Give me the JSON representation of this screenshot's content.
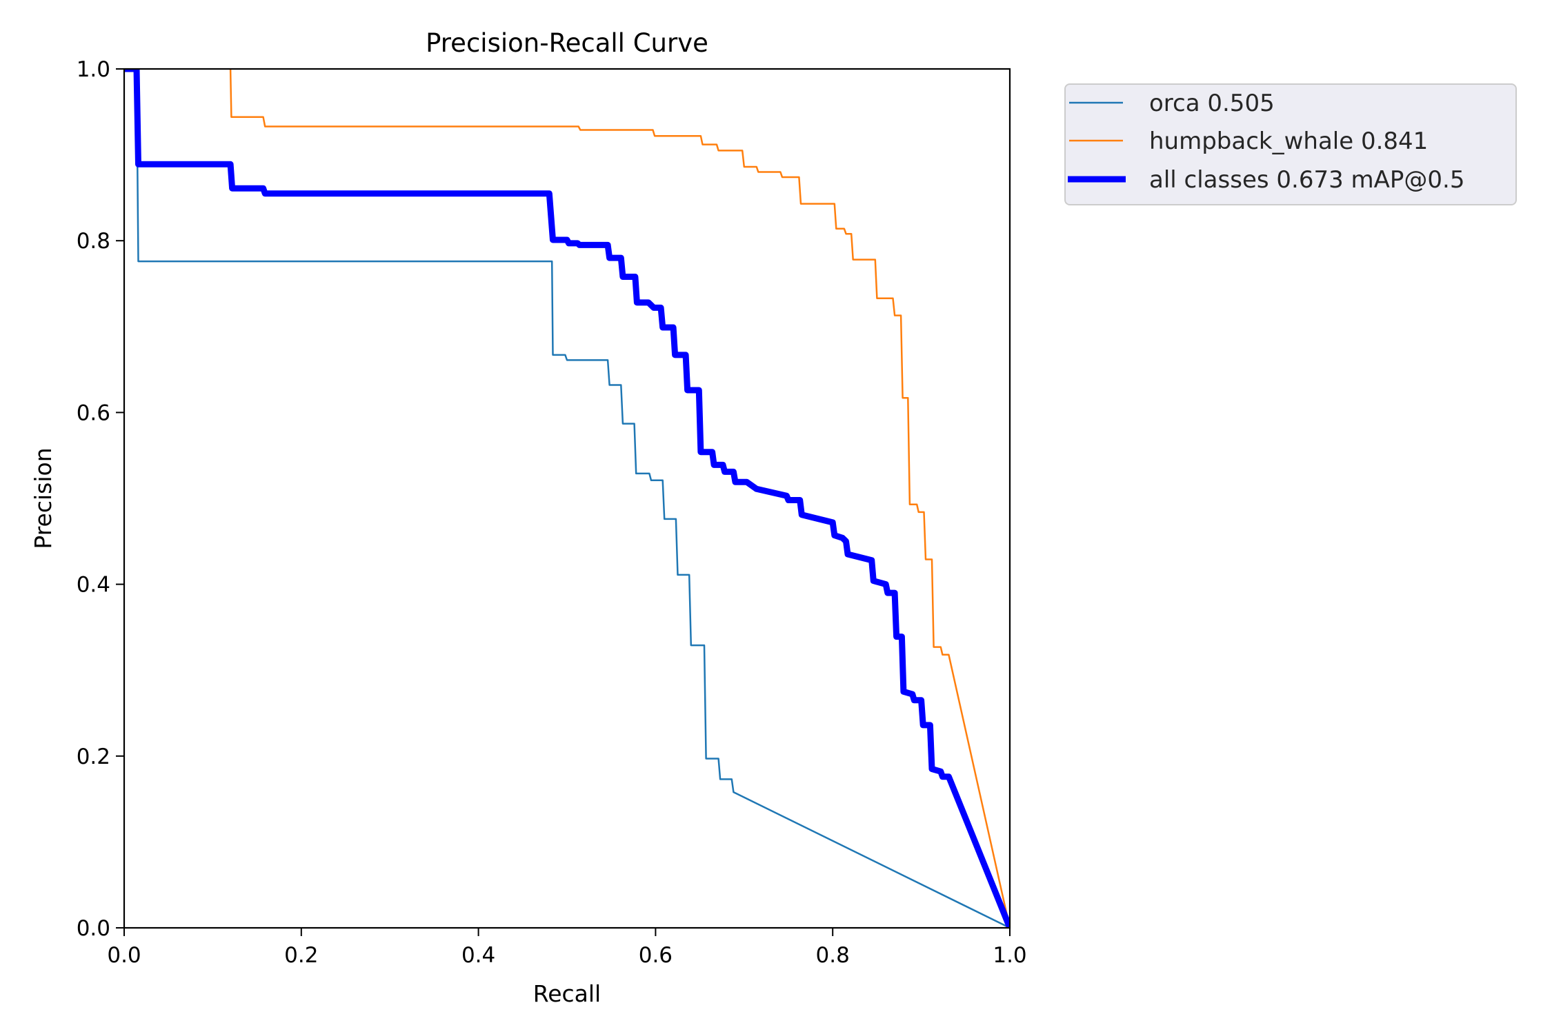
{
  "chart_data": {
    "type": "line",
    "title": "Precision-Recall Curve",
    "xlabel": "Recall",
    "ylabel": "Precision",
    "xlim": [
      0,
      1
    ],
    "ylim": [
      0,
      1
    ],
    "xticks": [
      "0.0",
      "0.2",
      "0.4",
      "0.6",
      "0.8",
      "1.0"
    ],
    "yticks": [
      "0.0",
      "0.2",
      "0.4",
      "0.6",
      "0.8",
      "1.0"
    ],
    "grid": false,
    "legend_position": "outside-top-right",
    "series": [
      {
        "name": "orca 0.505",
        "color": "#1f77b4",
        "width": "thin",
        "points": [
          [
            0,
            1.0
          ],
          [
            0.014,
            1.0
          ],
          [
            0.016,
            0.776
          ],
          [
            0.483,
            0.776
          ],
          [
            0.484,
            0.667
          ],
          [
            0.498,
            0.667
          ],
          [
            0.5,
            0.661
          ],
          [
            0.546,
            0.661
          ],
          [
            0.548,
            0.632
          ],
          [
            0.561,
            0.632
          ],
          [
            0.563,
            0.587
          ],
          [
            0.576,
            0.587
          ],
          [
            0.578,
            0.529
          ],
          [
            0.593,
            0.529
          ],
          [
            0.595,
            0.521
          ],
          [
            0.608,
            0.521
          ],
          [
            0.61,
            0.476
          ],
          [
            0.623,
            0.476
          ],
          [
            0.625,
            0.411
          ],
          [
            0.638,
            0.411
          ],
          [
            0.64,
            0.329
          ],
          [
            0.655,
            0.329
          ],
          [
            0.657,
            0.197
          ],
          [
            0.671,
            0.197
          ],
          [
            0.673,
            0.173
          ],
          [
            0.686,
            0.173
          ],
          [
            0.688,
            0.158
          ],
          [
            1.0,
            0.0
          ]
        ]
      },
      {
        "name": "humpback_whale 0.841",
        "color": "#ff7f0e",
        "width": "thin",
        "points": [
          [
            0.12,
            1.0
          ],
          [
            0.121,
            0.944
          ],
          [
            0.157,
            0.944
          ],
          [
            0.159,
            0.933
          ],
          [
            0.513,
            0.933
          ],
          [
            0.515,
            0.929
          ],
          [
            0.597,
            0.929
          ],
          [
            0.599,
            0.922
          ],
          [
            0.651,
            0.922
          ],
          [
            0.653,
            0.912
          ],
          [
            0.669,
            0.912
          ],
          [
            0.671,
            0.905
          ],
          [
            0.698,
            0.905
          ],
          [
            0.7,
            0.886
          ],
          [
            0.714,
            0.886
          ],
          [
            0.716,
            0.88
          ],
          [
            0.741,
            0.88
          ],
          [
            0.743,
            0.874
          ],
          [
            0.762,
            0.874
          ],
          [
            0.764,
            0.843
          ],
          [
            0.802,
            0.843
          ],
          [
            0.804,
            0.814
          ],
          [
            0.813,
            0.814
          ],
          [
            0.815,
            0.808
          ],
          [
            0.821,
            0.808
          ],
          [
            0.823,
            0.778
          ],
          [
            0.848,
            0.778
          ],
          [
            0.85,
            0.733
          ],
          [
            0.868,
            0.733
          ],
          [
            0.87,
            0.713
          ],
          [
            0.877,
            0.713
          ],
          [
            0.879,
            0.617
          ],
          [
            0.885,
            0.617
          ],
          [
            0.887,
            0.493
          ],
          [
            0.895,
            0.493
          ],
          [
            0.897,
            0.484
          ],
          [
            0.903,
            0.484
          ],
          [
            0.905,
            0.429
          ],
          [
            0.912,
            0.429
          ],
          [
            0.914,
            0.327
          ],
          [
            0.922,
            0.327
          ],
          [
            0.924,
            0.318
          ],
          [
            0.931,
            0.318
          ],
          [
            1.0,
            0.0
          ]
        ]
      },
      {
        "name": "all classes 0.673 mAP@0.5",
        "color": "#0000ff",
        "width": "thick",
        "points": [
          [
            0,
            1.0
          ],
          [
            0.014,
            1.0
          ],
          [
            0.016,
            0.889
          ],
          [
            0.12,
            0.889
          ],
          [
            0.122,
            0.861
          ],
          [
            0.157,
            0.861
          ],
          [
            0.159,
            0.855
          ],
          [
            0.48,
            0.855
          ],
          [
            0.484,
            0.801
          ],
          [
            0.5,
            0.801
          ],
          [
            0.502,
            0.797
          ],
          [
            0.512,
            0.797
          ],
          [
            0.514,
            0.795
          ],
          [
            0.546,
            0.795
          ],
          [
            0.548,
            0.78
          ],
          [
            0.561,
            0.78
          ],
          [
            0.563,
            0.758
          ],
          [
            0.577,
            0.758
          ],
          [
            0.579,
            0.728
          ],
          [
            0.592,
            0.728
          ],
          [
            0.598,
            0.722
          ],
          [
            0.606,
            0.722
          ],
          [
            0.608,
            0.699
          ],
          [
            0.62,
            0.699
          ],
          [
            0.622,
            0.667
          ],
          [
            0.634,
            0.667
          ],
          [
            0.636,
            0.626
          ],
          [
            0.649,
            0.626
          ],
          [
            0.651,
            0.554
          ],
          [
            0.664,
            0.554
          ],
          [
            0.666,
            0.539
          ],
          [
            0.676,
            0.539
          ],
          [
            0.678,
            0.531
          ],
          [
            0.688,
            0.531
          ],
          [
            0.69,
            0.519
          ],
          [
            0.703,
            0.519
          ],
          [
            0.714,
            0.511
          ],
          [
            0.748,
            0.503
          ],
          [
            0.75,
            0.498
          ],
          [
            0.763,
            0.498
          ],
          [
            0.765,
            0.481
          ],
          [
            0.8,
            0.472
          ],
          [
            0.802,
            0.457
          ],
          [
            0.811,
            0.454
          ],
          [
            0.815,
            0.45
          ],
          [
            0.817,
            0.435
          ],
          [
            0.844,
            0.428
          ],
          [
            0.846,
            0.404
          ],
          [
            0.86,
            0.4
          ],
          [
            0.862,
            0.39
          ],
          [
            0.87,
            0.39
          ],
          [
            0.872,
            0.339
          ],
          [
            0.878,
            0.339
          ],
          [
            0.88,
            0.275
          ],
          [
            0.89,
            0.272
          ],
          [
            0.892,
            0.265
          ],
          [
            0.9,
            0.265
          ],
          [
            0.902,
            0.236
          ],
          [
            0.91,
            0.236
          ],
          [
            0.912,
            0.185
          ],
          [
            0.922,
            0.182
          ],
          [
            0.924,
            0.176
          ],
          [
            0.931,
            0.176
          ],
          [
            1.0,
            0.0
          ]
        ]
      }
    ]
  }
}
